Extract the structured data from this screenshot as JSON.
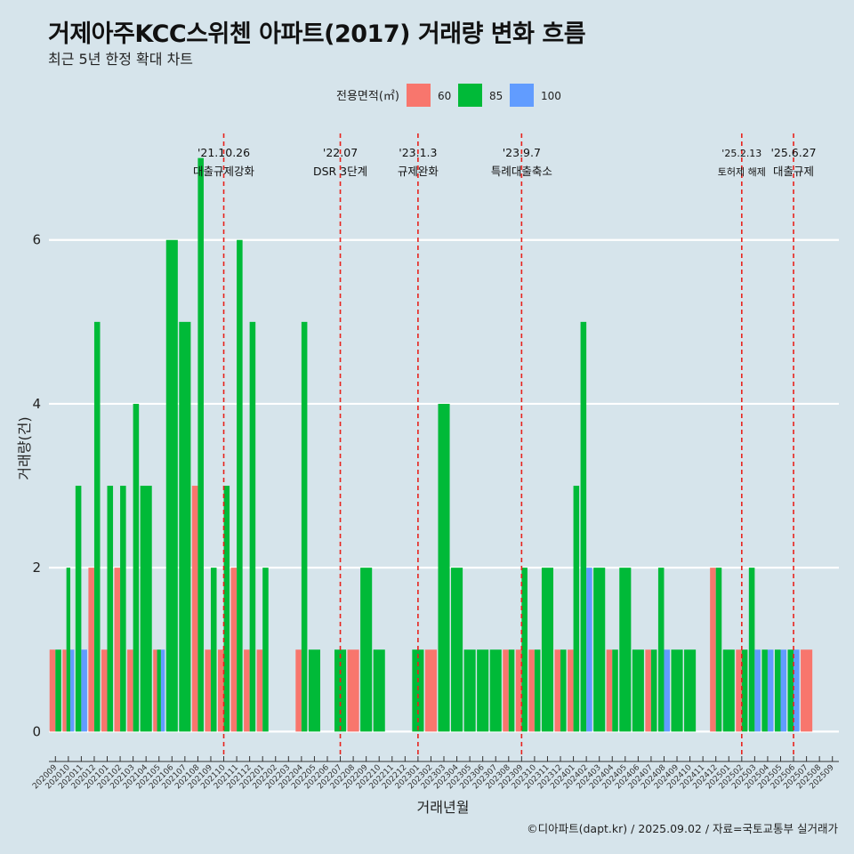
{
  "title": "거제아주KCC스위첸 아파트(2017) 거래량 변화 흐름",
  "subtitle": "최근 5년 한정 확대 차트",
  "caption": "©디아파트(dapt.kr) / 2025.09.02 / 자료=국토교통부 실거래가",
  "chart_data": {
    "type": "bar",
    "xlabel": "거래년월",
    "ylabel": "거래량(건)",
    "ylim": [
      -0.3,
      7.3
    ],
    "yticks": [
      0,
      2,
      4,
      6
    ],
    "grid": true,
    "legend": {
      "title": "전용면적(㎡)",
      "position": "top",
      "items": [
        {
          "name": "60",
          "color": "#f8766d"
        },
        {
          "name": "85",
          "color": "#00ba38"
        },
        {
          "name": "100",
          "color": "#619cff"
        }
      ]
    },
    "categories": [
      "202009",
      "202010",
      "202011",
      "202012",
      "202101",
      "202102",
      "202103",
      "202104",
      "202105",
      "202106",
      "202107",
      "202108",
      "202109",
      "202110",
      "202111",
      "202112",
      "202201",
      "202202",
      "202203",
      "202204",
      "202205",
      "202206",
      "202207",
      "202208",
      "202209",
      "202210",
      "202211",
      "202212",
      "202301",
      "202302",
      "202303",
      "202304",
      "202305",
      "202306",
      "202307",
      "202308",
      "202309",
      "202310",
      "202311",
      "202312",
      "202401",
      "202402",
      "202403",
      "202404",
      "202405",
      "202406",
      "202407",
      "202408",
      "202409",
      "202410",
      "202411",
      "202412",
      "202501",
      "202502",
      "202503",
      "202504",
      "202505",
      "202506",
      "202507",
      "202508",
      "202509"
    ],
    "series": [
      {
        "name": "60",
        "color": "#f8766d",
        "values": [
          1,
          1,
          0,
          2,
          1,
          2,
          1,
          0,
          1,
          0,
          0,
          3,
          1,
          1,
          2,
          1,
          1,
          0,
          0,
          1,
          0,
          0,
          0,
          1,
          0,
          0,
          0,
          0,
          0,
          1,
          0,
          0,
          0,
          0,
          0,
          1,
          1,
          1,
          0,
          1,
          1,
          0,
          0,
          1,
          0,
          0,
          1,
          0,
          0,
          0,
          0,
          2,
          0,
          1,
          0,
          0,
          0,
          0,
          1,
          0,
          0
        ]
      },
      {
        "name": "85",
        "color": "#00ba38",
        "values": [
          1,
          2,
          3,
          5,
          3,
          3,
          4,
          3,
          1,
          6,
          5,
          7,
          2,
          3,
          6,
          5,
          2,
          0,
          0,
          5,
          1,
          0,
          1,
          0,
          2,
          1,
          0,
          0,
          1,
          0,
          4,
          2,
          1,
          1,
          1,
          1,
          2,
          1,
          2,
          1,
          3,
          5,
          2,
          1,
          2,
          1,
          1,
          2,
          1,
          1,
          0,
          2,
          1,
          1,
          2,
          1,
          1,
          1,
          0,
          0,
          0
        ]
      },
      {
        "name": "100",
        "color": "#619cff",
        "values": [
          0,
          1,
          1,
          0,
          0,
          0,
          0,
          0,
          1,
          0,
          0,
          0,
          0,
          0,
          0,
          0,
          0,
          0,
          0,
          0,
          0,
          0,
          0,
          0,
          0,
          0,
          0,
          0,
          0,
          0,
          0,
          0,
          0,
          0,
          0,
          0,
          0,
          0,
          0,
          0,
          0,
          2,
          0,
          0,
          0,
          0,
          0,
          1,
          0,
          0,
          0,
          0,
          0,
          0,
          1,
          1,
          1,
          1,
          0,
          0,
          0
        ]
      }
    ],
    "events": [
      {
        "category": "202110",
        "date": "'21.10.26",
        "label": "대출규제강화"
      },
      {
        "category": "202207",
        "date": "'22.07",
        "label": "DSR 3단계"
      },
      {
        "category": "202301",
        "date": "'23.1.3",
        "label": "규제완화"
      },
      {
        "category": "202309",
        "date": "'23.9.7",
        "label": "특례대출축소"
      },
      {
        "category": "202502",
        "date": "'25.2.13",
        "label": "토허제 해제"
      },
      {
        "category": "202506",
        "date": "'25.6.27",
        "label": "대출규제"
      }
    ]
  }
}
